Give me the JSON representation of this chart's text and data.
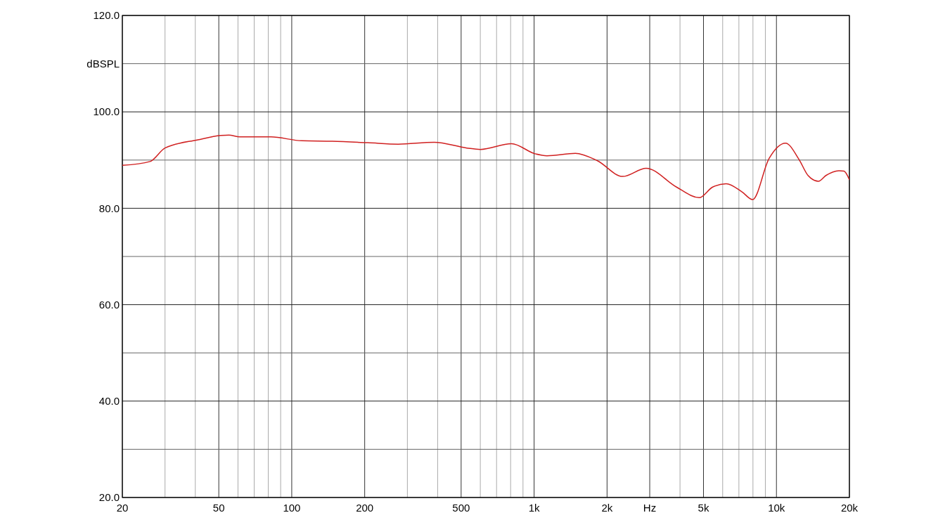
{
  "chart_data": {
    "type": "line",
    "ylabel": "dBSPL",
    "log": "x",
    "grid": true,
    "marker": "none",
    "line_style": "solid",
    "xlim": [
      20,
      20000
    ],
    "ylim": [
      20,
      120
    ],
    "xticks": [
      20,
      {
        "value": 30,
        "label": null
      },
      {
        "value": 40,
        "label": null
      },
      50,
      {
        "value": 60,
        "label": null
      },
      {
        "value": 70,
        "label": null
      },
      {
        "value": 80,
        "label": null
      },
      {
        "value": 90,
        "label": null
      },
      100,
      200,
      {
        "value": 300,
        "label": null
      },
      {
        "value": 400,
        "label": null
      },
      500,
      {
        "value": 600,
        "label": null
      },
      {
        "value": 700,
        "label": null
      },
      {
        "value": 800,
        "label": null
      },
      {
        "value": 900,
        "label": null
      },
      {
        "value": 1000,
        "label": "1k"
      },
      {
        "value": 2000,
        "label": "2k"
      },
      {
        "value": 3000,
        "label": "Hz"
      },
      {
        "value": 4000,
        "label": null
      },
      {
        "value": 5000,
        "label": "5k"
      },
      {
        "value": 6000,
        "label": null
      },
      {
        "value": 7000,
        "label": null
      },
      {
        "value": 8000,
        "label": null
      },
      {
        "value": 9000,
        "label": null
      },
      {
        "value": 10000,
        "label": "10k"
      },
      {
        "value": 20000,
        "label": "20k"
      }
    ],
    "yticks": [
      {
        "value": 20,
        "label": "20.0"
      },
      {
        "value": 30,
        "label": null
      },
      {
        "value": 40,
        "label": "40.0"
      },
      {
        "value": 50,
        "label": null
      },
      {
        "value": 60,
        "label": "60.0"
      },
      {
        "value": 70,
        "label": null
      },
      {
        "value": 80,
        "label": "80.0"
      },
      {
        "value": 90,
        "label": null
      },
      {
        "value": 100,
        "label": "100.0"
      },
      {
        "value": 110,
        "label": null
      },
      {
        "value": 120,
        "label": "120.0"
      }
    ],
    "series": [
      {
        "color": "#d02020",
        "x": [
          20,
          26,
          30,
          41,
          51,
          55,
          61,
          82,
          110,
          147,
          206,
          275,
          387,
          528,
          600,
          807,
          1010,
          1130,
          1480,
          1820,
          2320,
          2900,
          3870,
          4800,
          5450,
          6200,
          7210,
          7970,
          9320,
          10900,
          12400,
          13500,
          14900,
          16000,
          18100,
          19000,
          20000
        ],
        "values": [
          88.9,
          89.7,
          92.5,
          94.2,
          95.1,
          95.2,
          94.8,
          94.8,
          94.0,
          93.9,
          93.6,
          93.3,
          93.7,
          92.5,
          92.2,
          93.4,
          91.3,
          90.9,
          91.4,
          89.9,
          86.6,
          88.3,
          84.4,
          82.2,
          84.4,
          85.1,
          83.4,
          81.8,
          90.3,
          93.5,
          90.1,
          86.8,
          85.6,
          86.8,
          87.8,
          87.7,
          85.9
        ]
      }
    ]
  }
}
